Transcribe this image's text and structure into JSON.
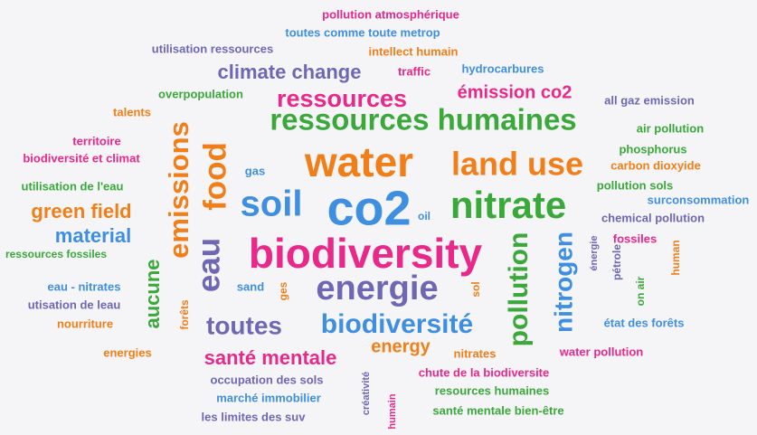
{
  "words": [
    "pollution atmosphérique",
    "toutes comme toute metrop",
    "utilisation ressources",
    "intellect humain",
    "climate change",
    "traffic",
    "hydrocarbures",
    "overpopulation",
    "ressources",
    "émission co2",
    "all gaz emission",
    "talents",
    "ressources humaines",
    "air pollution",
    "territoire",
    "phosphorus",
    "biodiversité et climat",
    "carbon dioxyide",
    "water",
    "land use",
    "emissions",
    "food",
    "gas",
    "utilisation de l'eau",
    "pollution sols",
    "soil",
    "co2",
    "nitrate",
    "surconsommation",
    "green field",
    "oil",
    "chemical pollution",
    "eau",
    "material",
    "biodiversity",
    "fossiles",
    "énergie",
    "ressources fossiles",
    "pollution",
    "nitrogen",
    "pétrole",
    "human",
    "aucune",
    "on air",
    "eau - nitrates",
    "sand",
    "ges",
    "energie",
    "sol",
    "utisation de leau",
    "forêts",
    "toutes",
    "biodiversité",
    "état des forêts",
    "nourriture",
    "energy",
    "santé mentale",
    "energies",
    "nitrates",
    "water pollution",
    "occupation des sols",
    "créativité",
    "chute de la biodiversite",
    "marché immobilier",
    "humain",
    "resources humaines",
    "les limites des suv",
    "santé mentale bien-être"
  ]
}
